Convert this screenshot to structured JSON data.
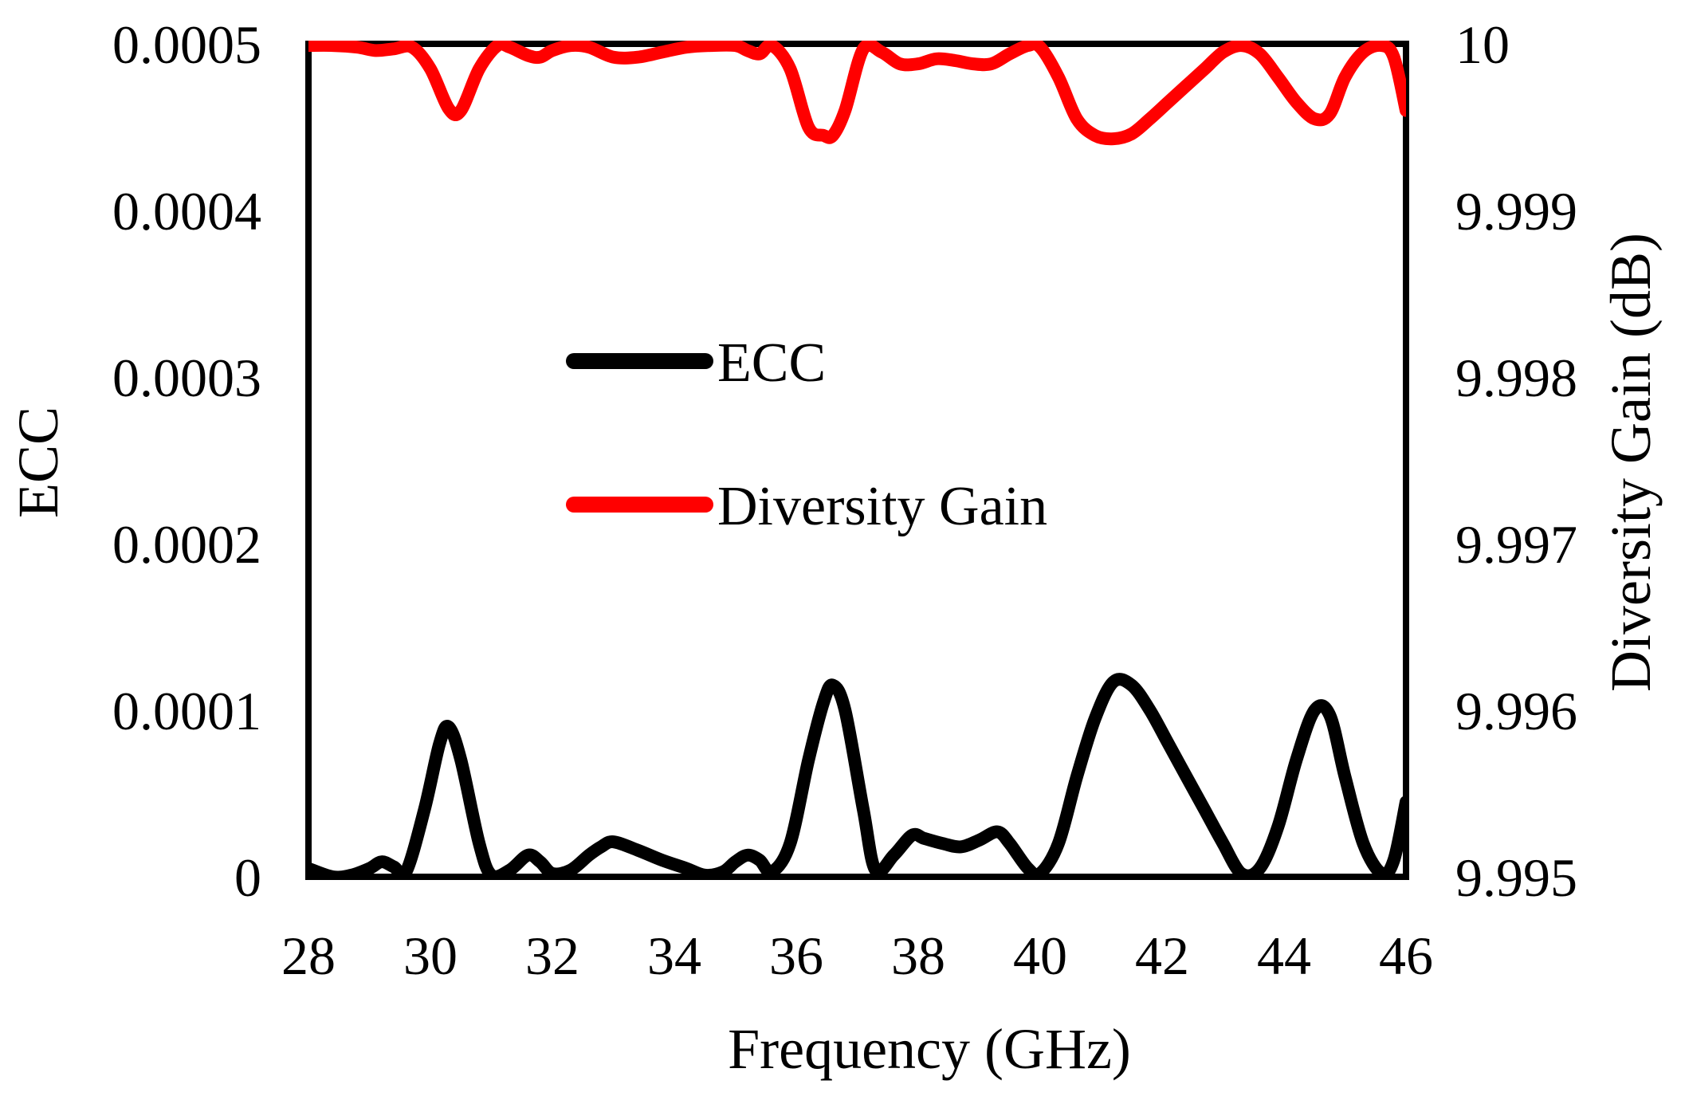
{
  "chart_data": {
    "type": "line",
    "xlabel": "Frequency (GHz)",
    "ylabel_left": "ECC",
    "ylabel_right": "Diversity Gain (dB)",
    "xlim": [
      28,
      46
    ],
    "ylim_left": [
      0,
      0.0005
    ],
    "ylim_right": [
      9.995,
      10
    ],
    "x_ticks": [
      28,
      30,
      32,
      34,
      36,
      38,
      40,
      42,
      44,
      46
    ],
    "x_tick_labels": [
      "28",
      "30",
      "32",
      "34",
      "36",
      "38",
      "40",
      "42",
      "44",
      "46"
    ],
    "y_left_ticks": [
      0,
      0.0001,
      0.0002,
      0.0003,
      0.0004,
      0.0005
    ],
    "y_left_tick_labels": [
      "0",
      "0.0001",
      "0.0002",
      "0.0003",
      "0.0004",
      "0.0005"
    ],
    "y_right_ticks": [
      9.995,
      9.996,
      9.997,
      9.998,
      9.999,
      10
    ],
    "y_right_tick_labels": [
      "9.995",
      "9.996",
      "9.997",
      "9.998",
      "9.999",
      "10"
    ],
    "grid": false,
    "legend_position": "center-left",
    "series": [
      {
        "name": "ECC",
        "axis": "left",
        "color": "#000000",
        "x": [
          28,
          28.4,
          28.7,
          29.0,
          29.2,
          29.4,
          29.6,
          29.9,
          30.15,
          30.3,
          30.5,
          30.8,
          31.0,
          31.3,
          31.6,
          31.8,
          32.0,
          32.3,
          32.6,
          32.8,
          33.0,
          33.4,
          33.8,
          34.2,
          34.5,
          34.8,
          35.0,
          35.2,
          35.4,
          35.6,
          35.9,
          36.2,
          36.45,
          36.6,
          36.8,
          37.1,
          37.3,
          37.6,
          37.9,
          38.1,
          38.4,
          38.7,
          39.0,
          39.3,
          39.5,
          39.8,
          40.0,
          40.3,
          40.6,
          40.9,
          41.2,
          41.5,
          41.8,
          42.1,
          42.4,
          42.7,
          43.0,
          43.3,
          43.6,
          43.9,
          44.2,
          44.5,
          44.75,
          45.0,
          45.3,
          45.6,
          45.8,
          46.0
        ],
        "y": [
          5e-06,
          0.0,
          1e-06,
          5e-06,
          9e-06,
          6e-06,
          3e-06,
          4e-05,
          8e-05,
          9e-05,
          7e-05,
          2e-05,
          1e-06,
          4e-06,
          1.3e-05,
          9e-06,
          2e-06,
          4e-06,
          1.3e-05,
          1.8e-05,
          2.1e-05,
          1.6e-05,
          1e-05,
          5e-06,
          1e-06,
          3e-06,
          9e-06,
          1.3e-05,
          1e-05,
          3e-06,
          2e-05,
          7e-05,
          0.000105,
          0.000115,
          0.0001,
          4e-05,
          4e-06,
          1.3e-05,
          2.5e-05,
          2.3e-05,
          2e-05,
          1.8e-05,
          2.2e-05,
          2.7e-05,
          2e-05,
          5e-06,
          2e-06,
          2e-05,
          6e-05,
          9.5e-05,
          0.000117,
          0.000115,
          0.0001,
          8e-05,
          6e-05,
          4e-05,
          2e-05,
          2e-06,
          5e-06,
          3e-05,
          7e-05,
          0.0001,
          9.7e-05,
          6e-05,
          2e-05,
          2e-06,
          1e-05,
          4.5e-05
        ]
      },
      {
        "name": "Diversity Gain",
        "axis": "right",
        "color": "#ff0000",
        "x": [
          28,
          28.4,
          28.8,
          29.1,
          29.4,
          29.7,
          30.0,
          30.3,
          30.5,
          30.8,
          31.1,
          31.3,
          31.6,
          31.8,
          32.0,
          32.3,
          32.6,
          33.0,
          33.4,
          33.8,
          34.2,
          34.6,
          35.0,
          35.2,
          35.4,
          35.6,
          35.9,
          36.2,
          36.45,
          36.6,
          36.8,
          37.1,
          37.4,
          37.7,
          38.0,
          38.3,
          38.6,
          38.9,
          39.2,
          39.5,
          39.8,
          40.0,
          40.3,
          40.6,
          40.9,
          41.2,
          41.5,
          41.8,
          42.1,
          42.4,
          42.7,
          43.0,
          43.3,
          43.6,
          43.9,
          44.2,
          44.5,
          44.75,
          45.0,
          45.3,
          45.6,
          45.8,
          46.0
        ],
        "y": [
          9.99999,
          9.99999,
          9.99998,
          9.99996,
          9.99997,
          9.99998,
          9.99985,
          9.99961,
          9.9996,
          9.99985,
          9.99999,
          9.99998,
          9.99993,
          9.99992,
          9.99996,
          9.99999,
          9.99998,
          9.99992,
          9.99992,
          9.99995,
          9.99998,
          9.99999,
          9.99999,
          9.99996,
          9.99994,
          9.99999,
          9.99985,
          9.9995,
          9.99945,
          9.99945,
          9.9996,
          9.99997,
          9.99995,
          9.99988,
          9.99988,
          9.99991,
          9.9999,
          9.99988,
          9.99988,
          9.99994,
          9.99999,
          9.99998,
          9.9998,
          9.99955,
          9.99945,
          9.99943,
          9.99946,
          9.99955,
          9.99965,
          9.99975,
          9.99985,
          9.99995,
          9.99999,
          9.99994,
          9.9998,
          9.99965,
          9.99955,
          9.99958,
          9.9998,
          9.99995,
          9.99999,
          9.99992,
          9.9996
        ]
      }
    ]
  }
}
